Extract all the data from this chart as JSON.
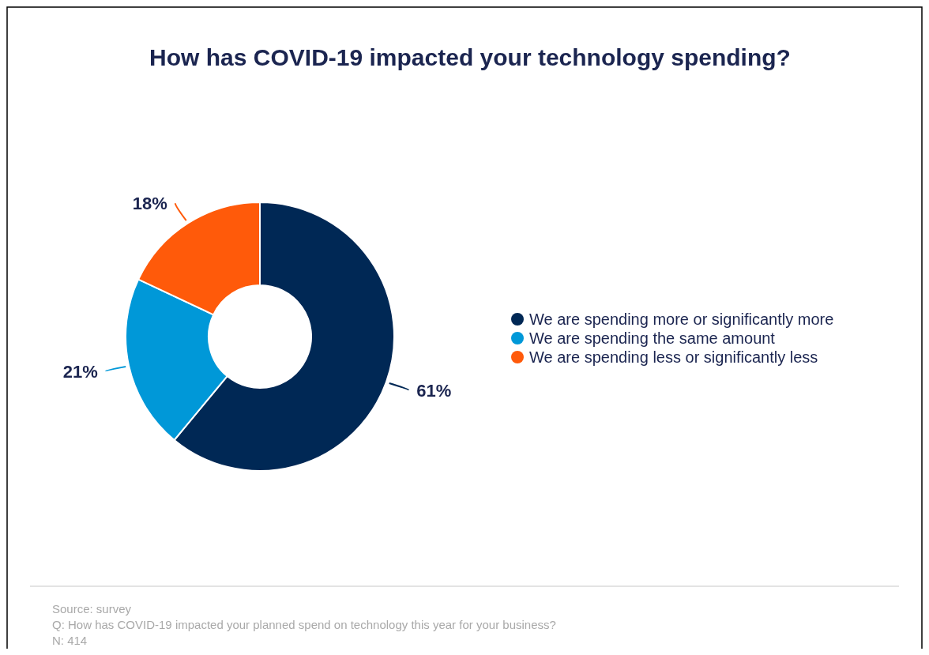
{
  "chart_data": {
    "type": "donut",
    "title": "How has COVID-19 impacted your technology spending?",
    "categories": [
      "We are spending more or significantly more",
      "We are spending the same amount",
      "We are spending less or significantly less"
    ],
    "values": [
      61,
      21,
      18
    ],
    "colors": [
      "#002855",
      "#0098d8",
      "#ff5a0a"
    ],
    "value_labels": [
      "61%",
      "21%",
      "18%"
    ],
    "legend": "right",
    "annotations": [
      "Source: survey",
      "Q: How has COVID-19 impacted your planned spend on technology this year for your business?",
      "N: 414"
    ]
  }
}
